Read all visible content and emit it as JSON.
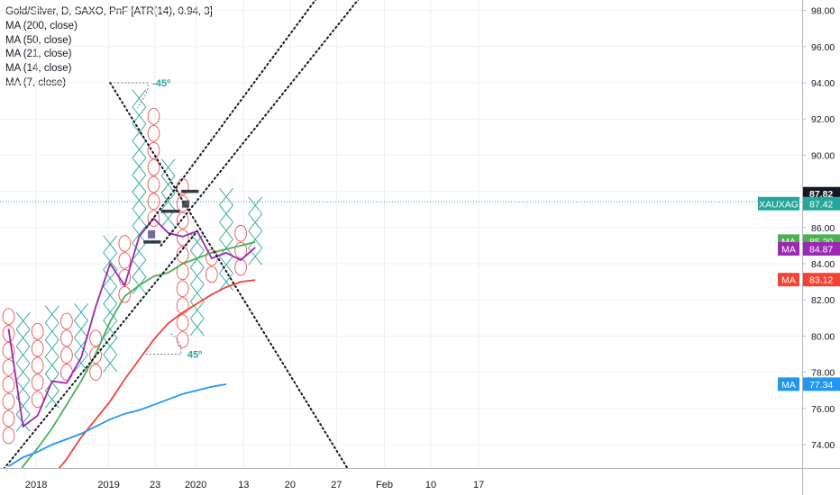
{
  "header": {
    "title": "Gold/Silver, D, SAXO, PnF [ATR(14), 0.94, 3]",
    "studies": [
      "MA (200, close)",
      "MA (50, close)",
      "MA (21, close)",
      "MA (14, close)",
      "MA (7, close)"
    ]
  },
  "chart_data": {
    "type": "point-and-figure",
    "symbol": "Gold/Silver",
    "box_size": 0.94,
    "ylim": [
      72.5,
      99.0
    ],
    "y_ticks": [
      "74.00",
      "76.00",
      "78.00",
      "80.00",
      "82.00",
      "84.00",
      "86.00",
      "88.00",
      "90.00",
      "92.00",
      "94.00",
      "96.00",
      "98.00"
    ],
    "x_ticks": [
      {
        "label": "2018",
        "col": 1.9
      },
      {
        "label": "2019",
        "col": 6.9
      },
      {
        "label": "23",
        "col": 10.1
      },
      {
        "label": "2020",
        "col": 12.9
      },
      {
        "label": "13",
        "col": 16.2
      },
      {
        "label": "20",
        "col": 19.4
      },
      {
        "label": "27",
        "col": 22.6
      },
      {
        "label": "Feb",
        "col": 25.9
      },
      {
        "label": "10",
        "col": 29.1
      },
      {
        "label": "17",
        "col": 32.4
      }
    ],
    "pnf_columns": [
      {
        "type": "O",
        "from": 81.2,
        "to": 74.5
      },
      {
        "type": "X",
        "from": 75.2,
        "to": 81.2
      },
      {
        "type": "O",
        "from": 80.3,
        "to": 76.5
      },
      {
        "type": "X",
        "from": 76.5,
        "to": 82.1
      },
      {
        "type": "O",
        "from": 81.2,
        "to": 78.0
      },
      {
        "type": "X",
        "from": 78.5,
        "to": 82.1
      },
      {
        "type": "O",
        "from": 80.3,
        "to": 78.0
      },
      {
        "type": "X",
        "from": 78.5,
        "to": 86.0
      },
      {
        "type": "O",
        "from": 85.2,
        "to": 82.3
      },
      {
        "type": "X",
        "from": 82.8,
        "to": 93.4
      },
      {
        "type": "O",
        "from": 92.4,
        "to": 86.5
      },
      {
        "type": "X",
        "from": 86.5,
        "to": 89.8
      },
      {
        "type": "O",
        "from": 88.8,
        "to": 79.8
      },
      {
        "type": "X",
        "from": 80.5,
        "to": 86.0
      },
      {
        "type": "O",
        "from": 85.2,
        "to": 83.4
      },
      {
        "type": "X",
        "from": 83.0,
        "to": 87.8
      },
      {
        "type": "O",
        "from": 86.5,
        "to": 83.8
      },
      {
        "type": "X",
        "from": 84.4,
        "to": 87.4
      }
    ],
    "series": [
      {
        "name": "MA (7, close)",
        "color": "#9c27b0",
        "values": [
          [
            0,
            80.4
          ],
          [
            1,
            75.0
          ],
          [
            2,
            75.6
          ],
          [
            3,
            77.5
          ],
          [
            4,
            77.4
          ],
          [
            5,
            78.8
          ],
          [
            6,
            81.6
          ],
          [
            7,
            84.0
          ],
          [
            8,
            82.8
          ],
          [
            9,
            85.5
          ],
          [
            10,
            86.5
          ],
          [
            11,
            85.7
          ],
          [
            12,
            85.5
          ],
          [
            13,
            85.8
          ],
          [
            14,
            84.3
          ],
          [
            15,
            84.6
          ],
          [
            16,
            84.2
          ],
          [
            17,
            84.9
          ]
        ]
      },
      {
        "name": "MA (14, close)",
        "color": "#4caf50",
        "values": [
          [
            0,
            71.4
          ],
          [
            1,
            72.8
          ],
          [
            2,
            73.8
          ],
          [
            3,
            74.9
          ],
          [
            4,
            76.2
          ],
          [
            5,
            77.5
          ],
          [
            6,
            79.0
          ],
          [
            7,
            80.8
          ],
          [
            8,
            82.2
          ],
          [
            9,
            82.8
          ],
          [
            10,
            83.3
          ],
          [
            11,
            83.5
          ],
          [
            12,
            84.0
          ],
          [
            13,
            84.3
          ],
          [
            14,
            84.6
          ],
          [
            15,
            84.8
          ],
          [
            16,
            85.0
          ],
          [
            17,
            85.2
          ]
        ]
      },
      {
        "name": "MA (21, close)",
        "color": "#f44336",
        "values": [
          [
            3,
            72.2
          ],
          [
            4,
            73.2
          ],
          [
            5,
            74.4
          ],
          [
            6,
            75.4
          ],
          [
            7,
            76.4
          ],
          [
            8,
            77.6
          ],
          [
            9,
            78.7
          ],
          [
            10,
            79.8
          ],
          [
            11,
            80.7
          ],
          [
            12,
            81.3
          ],
          [
            13,
            81.8
          ],
          [
            14,
            82.3
          ],
          [
            15,
            82.7
          ],
          [
            16,
            83.0
          ],
          [
            17,
            83.1
          ]
        ]
      },
      {
        "name": "MA (50, close)",
        "color": "#2196f3",
        "values": [
          [
            0,
            72.8
          ],
          [
            1,
            73.3
          ],
          [
            2,
            73.6
          ],
          [
            3,
            74.0
          ],
          [
            4,
            74.3
          ],
          [
            5,
            74.6
          ],
          [
            6,
            75.0
          ],
          [
            7,
            75.4
          ],
          [
            8,
            75.7
          ],
          [
            9,
            75.9
          ],
          [
            10,
            76.2
          ],
          [
            11,
            76.5
          ],
          [
            12,
            76.8
          ],
          [
            13,
            77.0
          ],
          [
            14,
            77.2
          ],
          [
            15,
            77.34
          ]
        ]
      }
    ],
    "price_labels": [
      {
        "name": "current",
        "text": "87.82",
        "value": 87.82,
        "color": "#131722"
      },
      {
        "name": "symbol",
        "symbol": "XAUXAG",
        "text": "87.42",
        "value": 87.42,
        "color": "#26a69a"
      },
      {
        "name": "ma-green",
        "symbol": "MA",
        "text": "85.20",
        "value": 85.2,
        "color": "#4caf50"
      },
      {
        "name": "ma-purple",
        "symbol": "MA",
        "text": "84.87",
        "value": 84.87,
        "color": "#9c27b0"
      },
      {
        "name": "ma-red",
        "symbol": "MA",
        "text": "83.12",
        "value": 83.12,
        "color": "#f44336"
      },
      {
        "name": "ma-blue",
        "symbol": "MA",
        "text": "77.34",
        "value": 77.34,
        "color": "#2196f3"
      }
    ],
    "annotations": {
      "angle_top": "-45º",
      "angle_bottom": "45º",
      "support_line_value": 87.42,
      "trendlines": [
        {
          "name": "up-lower",
          "from": [
            -1.5,
            71.5
          ],
          "to": [
            13.0,
            85.8
          ]
        },
        {
          "name": "up-upper",
          "from": [
            9.5,
            86.0
          ],
          "to": [
            22.0,
            99.5
          ]
        },
        {
          "name": "up-outer",
          "from": [
            10.5,
            85.0
          ],
          "to": [
            25.0,
            99.5
          ]
        },
        {
          "name": "down",
          "from": [
            7.0,
            94.0
          ],
          "to": [
            23.5,
            72.5
          ]
        }
      ],
      "bars": [
        {
          "col": [
            9.3,
            10.5
          ],
          "value": 85.2
        },
        {
          "col": [
            10.5,
            11.8
          ],
          "value": 86.9
        },
        {
          "col": [
            11.9,
            13.1
          ],
          "value": 88.0
        }
      ]
    },
    "grid": true
  }
}
